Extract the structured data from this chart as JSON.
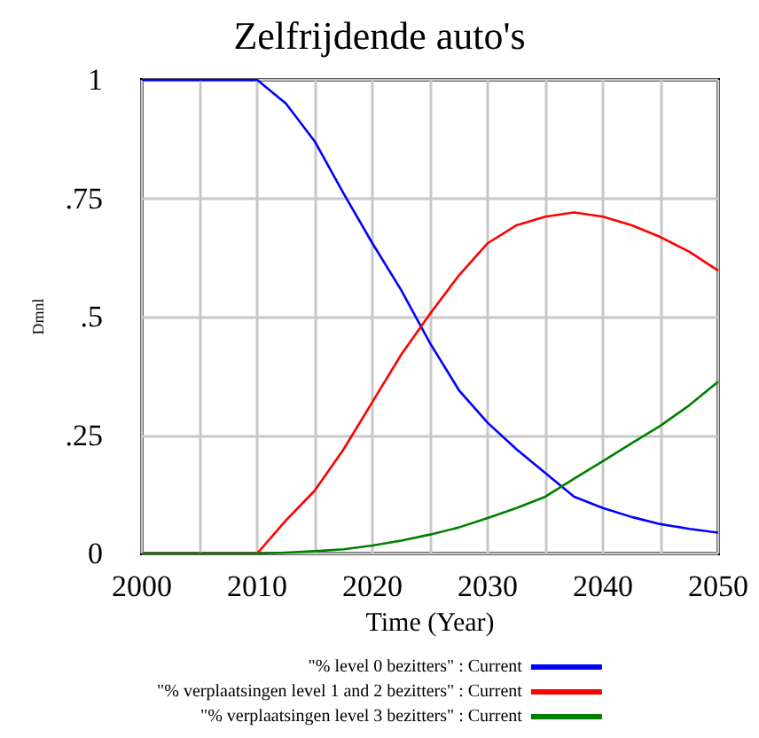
{
  "chart_data": {
    "type": "line",
    "title": "Zelfrijdende auto's",
    "xlabel": "Time (Year)",
    "ylabel": "Dmnl",
    "x": [
      2000,
      2005,
      2010,
      2012.5,
      2015,
      2017.5,
      2020,
      2022.5,
      2025,
      2027.5,
      2030,
      2032.5,
      2035,
      2037.5,
      2040,
      2042.5,
      2045,
      2047.5,
      2050
    ],
    "series": [
      {
        "name": "\"% level 0 bezitters\" : Current",
        "color": "#0000ff",
        "values": [
          1,
          1,
          1,
          0.95,
          0.87,
          0.76,
          0.655,
          0.556,
          0.444,
          0.345,
          0.276,
          0.22,
          0.17,
          0.12,
          0.096,
          0.077,
          0.062,
          0.052,
          0.044
        ]
      },
      {
        "name": "\"% verplaatsingen level 1 and 2 bezitters\" : Current",
        "color": "#ff0000",
        "values": [
          0,
          0,
          0,
          0.07,
          0.133,
          0.22,
          0.32,
          0.42,
          0.506,
          0.587,
          0.655,
          0.693,
          0.711,
          0.72,
          0.711,
          0.693,
          0.668,
          0.637,
          0.597
        ]
      },
      {
        "name": "\"% verplaatsingen level 3 bezitters\" : Current",
        "color": "#008000",
        "values": [
          0,
          0,
          0,
          0.002,
          0.005,
          0.009,
          0.017,
          0.027,
          0.04,
          0.055,
          0.075,
          0.096,
          0.12,
          0.158,
          0.195,
          0.233,
          0.27,
          0.313,
          0.363
        ]
      }
    ],
    "xlim": [
      2000,
      2050
    ],
    "xticks": [
      2000,
      {
        "value": 2005,
        "label": null
      },
      2010,
      {
        "value": 2015,
        "label": null
      },
      2020,
      {
        "value": 2025,
        "label": null
      },
      2030,
      {
        "value": 2035,
        "label": null
      },
      2040,
      {
        "value": 2045,
        "label": null
      },
      2050
    ],
    "ylim": [
      0,
      1
    ],
    "yticks": [
      {
        "value": 0,
        "label": "0"
      },
      {
        "value": 0.25,
        "label": ".25"
      },
      {
        "value": 0.5,
        "label": ".5"
      },
      {
        "value": 0.75,
        "label": ".75"
      },
      {
        "value": 1,
        "label": "1"
      }
    ],
    "grid": true,
    "legend": "bottom",
    "marker": "none",
    "line_style": "solid"
  }
}
